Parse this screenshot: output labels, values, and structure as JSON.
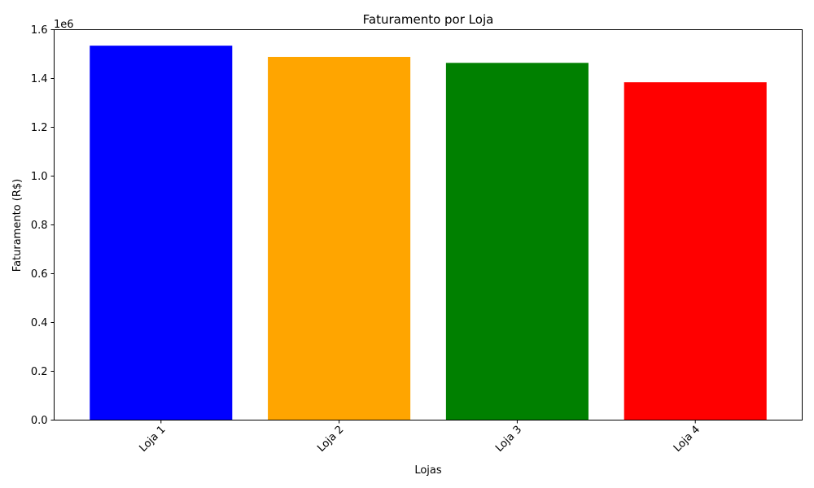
{
  "chart_data": {
    "type": "bar",
    "title": "Faturamento por Loja",
    "xlabel": "Lojas",
    "ylabel": "Faturamento (R$)",
    "categories": [
      "Loja 1",
      "Loja 2",
      "Loja 3",
      "Loja 4"
    ],
    "values": [
      1534509,
      1488459,
      1464025,
      1384497
    ],
    "colors": [
      "#0000ff",
      "#ffa500",
      "#008000",
      "#ff0000"
    ],
    "ylim": [
      0,
      1600000
    ],
    "y_ticks": [
      "0.0",
      "0.2",
      "0.4",
      "0.6",
      "0.8",
      "1.0",
      "1.2",
      "1.4",
      "1.6"
    ],
    "y_scale_label": "1e6",
    "x_tick_rotation": 45,
    "grid": false
  }
}
